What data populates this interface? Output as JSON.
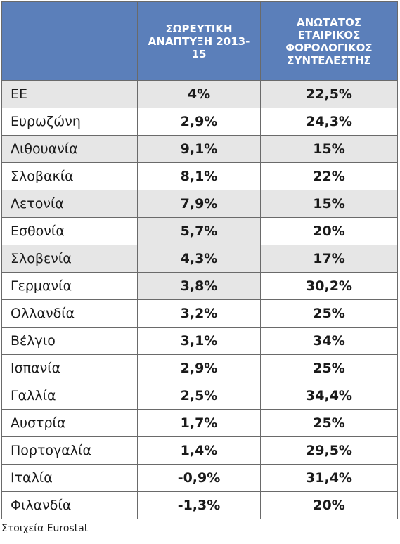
{
  "table": {
    "headers": {
      "country": "",
      "growth": "ΣΩΡΕΥΤΙΚΗ ΑΝΑΠΤΥΞΗ 2013-15",
      "tax": "ΑΝΩΤΑΤΟΣ ΕΤΑΙΡΙΚΟΣ ΦΟΡΟΛΟΓΙΚΟΣ ΣΥΝΤΕΛΕΣΤΗΣ"
    },
    "rows": [
      {
        "country": "ΕΕ",
        "growth": "4%",
        "tax": "22,5%"
      },
      {
        "country": "Ευρωζώνη",
        "growth": "2,9%",
        "tax": "24,3%"
      },
      {
        "country": "Λιθουανία",
        "growth": "9,1%",
        "tax": "15%"
      },
      {
        "country": "Σλοβακία",
        "growth": "8,1%",
        "tax": "22%"
      },
      {
        "country": "Λετονία",
        "growth": "7,9%",
        "tax": "15%"
      },
      {
        "country": "Εσθονία",
        "growth": "5,7%",
        "tax": "20%"
      },
      {
        "country": "Σλοβενία",
        "growth": "4,3%",
        "tax": "17%"
      },
      {
        "country": "Γερμανία",
        "growth": "3,8%",
        "tax": "30,2%"
      },
      {
        "country": "Ολλανδία",
        "growth": "3,2%",
        "tax": "25%"
      },
      {
        "country": "Βέλγιο",
        "growth": "3,1%",
        "tax": "34%"
      },
      {
        "country": "Ισπανία",
        "growth": "2,9%",
        "tax": "25%"
      },
      {
        "country": "Γαλλία",
        "growth": "2,5%",
        "tax": "34,4%"
      },
      {
        "country": "Αυστρία",
        "growth": "1,7%",
        "tax": "25%"
      },
      {
        "country": "Πορτογαλία",
        "growth": "1,4%",
        "tax": "29,5%"
      },
      {
        "country": "Ιταλία",
        "growth": "-0,9%",
        "tax": "31,4%"
      },
      {
        "country": "Φιλανδία",
        "growth": "-1,3%",
        "tax": "20%"
      }
    ]
  },
  "source": "Στοιχεία Eurostat",
  "colors": {
    "header_bg": "#5b7fba",
    "shade_bg": "#e6e6e6",
    "border": "#6a6a6a"
  }
}
